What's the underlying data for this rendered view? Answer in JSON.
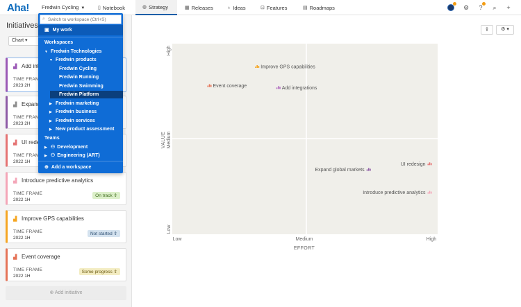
{
  "topbar": {
    "logo": "Aha!",
    "workspace": "Fredwin Cycling",
    "nav": [
      {
        "label": "Notebook",
        "icon": "notebook-icon",
        "glyph": "▯"
      },
      {
        "label": "Strategy",
        "icon": "strategy-icon",
        "glyph": "◍"
      },
      {
        "label": "Releases",
        "icon": "calendar-icon",
        "glyph": "▦"
      },
      {
        "label": "Ideas",
        "icon": "lightbulb-icon",
        "glyph": "♁"
      },
      {
        "label": "Features",
        "icon": "features-icon",
        "glyph": "⊡"
      },
      {
        "label": "Roadmaps",
        "icon": "roadmap-icon",
        "glyph": "▤"
      }
    ]
  },
  "left": {
    "title": "Initiatives",
    "chart_btn": "Chart ▾",
    "timeframe_label": "TIME FRAME",
    "cards": [
      {
        "title": "Add integrations",
        "timeframe": "2023 2H",
        "status": "",
        "color": "#9b59b6"
      },
      {
        "title": "Expand global markets",
        "timeframe": "2023 2H",
        "status": "",
        "color": "#8e5ba6"
      },
      {
        "title": "UI redesign",
        "timeframe": "2022 1H",
        "status": "",
        "color": "#e57373"
      },
      {
        "title": "Introduce predictive analytics",
        "timeframe": "2022 1H",
        "status": "On track",
        "color": "#f4a6b8"
      },
      {
        "title": "Improve GPS capabilities",
        "timeframe": "2022 1H",
        "status": "Not started",
        "color": "#f5a623"
      },
      {
        "title": "Event coverage",
        "timeframe": "2022 1H",
        "status": "Some progress",
        "color": "#e57357"
      }
    ],
    "add_initiative": "⊕ Add initiative"
  },
  "dropdown": {
    "placeholder": "Switch to workspace (Ctrl+S)",
    "my_work": "My work",
    "workspaces_header": "Workspaces",
    "items": [
      {
        "label": "Fredwin Technologies",
        "tri": "▼"
      },
      {
        "label": "Fredwin products",
        "tri": "▼"
      },
      {
        "label": "Fredwin Cycling",
        "tri": ""
      },
      {
        "label": "Fredwin Running",
        "tri": ""
      },
      {
        "label": "Fredwin Swimming",
        "tri": ""
      },
      {
        "label": "Fredwin Platform",
        "tri": ""
      },
      {
        "label": "Fredwin marketing",
        "tri": "▶"
      },
      {
        "label": "Fredwin business",
        "tri": "▶"
      },
      {
        "label": "Fredwin services",
        "tri": "▶"
      },
      {
        "label": "New product assessment",
        "tri": "▶"
      }
    ],
    "teams_header": "Teams",
    "teams": [
      {
        "label": "Development",
        "tri": "▶"
      },
      {
        "label": "Engineering (ART)",
        "tri": "▶"
      }
    ],
    "add_workspace": "Add a workspace"
  },
  "chart_data": {
    "type": "scatter",
    "xlabel": "EFFORT",
    "ylabel": "VALUE",
    "x_ticks": [
      "Low",
      "Medium",
      "High"
    ],
    "y_ticks": [
      "Low",
      "Medium",
      "High"
    ],
    "xlim": [
      0,
      1
    ],
    "ylim": [
      0,
      1
    ],
    "grid": "quadrant",
    "points": [
      {
        "label": "Improve GPS capabilities",
        "x": 0.32,
        "y": 0.88,
        "label_side": "right",
        "color": "#f5a623"
      },
      {
        "label": "Event coverage",
        "x": 0.14,
        "y": 0.78,
        "label_side": "right",
        "color": "#e57357"
      },
      {
        "label": "Add integrations",
        "x": 0.4,
        "y": 0.77,
        "label_side": "right",
        "color": "#b06bbf"
      },
      {
        "label": "UI redesign",
        "x": 0.97,
        "y": 0.37,
        "label_side": "left",
        "color": "#e57373"
      },
      {
        "label": "Expand global markets",
        "x": 0.74,
        "y": 0.34,
        "label_side": "left",
        "color": "#8e5ba6"
      },
      {
        "label": "Introduce predictive analytics",
        "x": 0.97,
        "y": 0.22,
        "label_side": "left",
        "color": "#f4a6b8"
      }
    ]
  }
}
